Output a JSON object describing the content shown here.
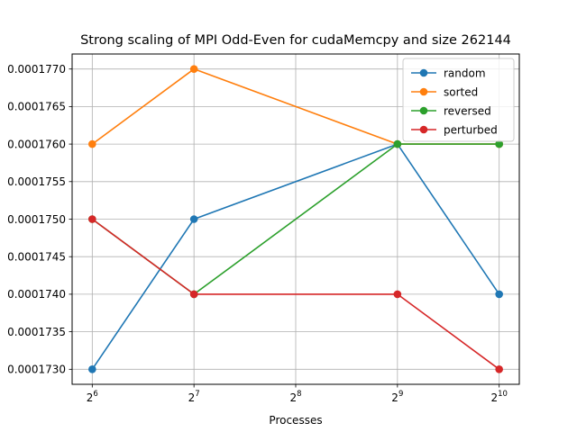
{
  "chart_data": {
    "type": "line",
    "title": "Strong scaling of MPI Odd-Even for cudaMemcpy and size 262144",
    "xlabel": "Processes",
    "ylabel": "",
    "x_scale": "log2",
    "x": [
      64,
      128,
      512,
      1024
    ],
    "xlim": [
      64,
      1024
    ],
    "x_ticks": [
      {
        "value": 64,
        "base": "2",
        "exp": "6"
      },
      {
        "value": 128,
        "base": "2",
        "exp": "7"
      },
      {
        "value": 256,
        "base": "2",
        "exp": "8"
      },
      {
        "value": 512,
        "base": "2",
        "exp": "9"
      },
      {
        "value": 1024,
        "base": "2",
        "exp": "10"
      }
    ],
    "ylim": [
      0.0001728,
      0.0001772
    ],
    "y_ticks": [
      {
        "value": 0.000173,
        "label": "0.0001730"
      },
      {
        "value": 0.0001735,
        "label": "0.0001735"
      },
      {
        "value": 0.000174,
        "label": "0.0001740"
      },
      {
        "value": 0.0001745,
        "label": "0.0001745"
      },
      {
        "value": 0.000175,
        "label": "0.0001750"
      },
      {
        "value": 0.0001755,
        "label": "0.0001755"
      },
      {
        "value": 0.000176,
        "label": "0.0001760"
      },
      {
        "value": 0.0001765,
        "label": "0.0001765"
      },
      {
        "value": 0.000177,
        "label": "0.0001770"
      }
    ],
    "grid": true,
    "legend_position": "top-right",
    "series": [
      {
        "name": "random",
        "color": "#1f77b4",
        "values": [
          0.000173,
          0.000175,
          0.000176,
          0.000174
        ]
      },
      {
        "name": "sorted",
        "color": "#ff7f0e",
        "values": [
          0.000176,
          0.000177,
          0.000176,
          0.000176
        ]
      },
      {
        "name": "reversed",
        "color": "#2ca02c",
        "values": [
          0.000175,
          0.000174,
          0.000176,
          0.000176
        ]
      },
      {
        "name": "perturbed",
        "color": "#d62728",
        "values": [
          0.000175,
          0.000174,
          0.000174,
          0.000173
        ]
      }
    ]
  }
}
